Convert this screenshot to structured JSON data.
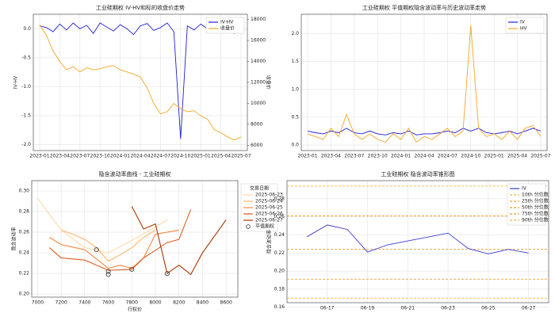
{
  "chart_data": [
    {
      "type": "line",
      "title": "工业硅期权 IV-HV和标的收盘价走势",
      "ylabel": "IV-HV",
      "y2label": "收盘价",
      "x": [
        "2023-01",
        "2023-02",
        "2023-03",
        "2023-04",
        "2023-05",
        "2023-06",
        "2023-07",
        "2023-08",
        "2023-09",
        "2023-10",
        "2023-11",
        "2023-12",
        "2024-01",
        "2024-02",
        "2024-03",
        "2024-04",
        "2024-05",
        "2024-06",
        "2024-07",
        "2024-08",
        "2024-09",
        "2024-10",
        "2024-11",
        "2024-12",
        "2025-01",
        "2025-02",
        "2025-03",
        "2025-04",
        "2025-05",
        "2025-06",
        "2025-07"
      ],
      "xticks": [
        "2023-01",
        "2023-04",
        "2023-07",
        "2023-10",
        "2024-01",
        "2024-04",
        "2024-07",
        "2024-10",
        "2025-01",
        "2025-04",
        "2025-07"
      ],
      "ylim": [
        -2.1,
        0.25
      ],
      "yticks": [
        {
          "value": 0,
          "label": "0.0"
        },
        -0.5,
        {
          "value": -1,
          "label": "-1.0"
        },
        -1.5,
        {
          "value": -2,
          "label": "-2.0"
        }
      ],
      "y2lim": [
        5500,
        18500
      ],
      "y2ticks": [
        6000,
        8000,
        10000,
        12000,
        14000,
        16000,
        18000
      ],
      "grid": true,
      "legend": "upper right",
      "series": [
        {
          "name": "IV-HV",
          "color": "#1f1fd6",
          "values": [
            0.05,
            0.02,
            -0.05,
            0.08,
            -0.02,
            0.1,
            0.0,
            0.06,
            -0.08,
            0.1,
            0.03,
            -0.04,
            0.07,
            0.0,
            -0.1,
            0.05,
            0.09,
            -0.03,
            0.02,
            0.1,
            -0.05,
            -1.9,
            0.05,
            -0.02,
            0.08,
            0.0,
            -0.06,
            0.04,
            0.02,
            -0.08,
            0.05
          ]
        },
        {
          "name": "收盘价",
          "color": "#f5a623",
          "axis": "y2",
          "values": [
            17500,
            16500,
            15000,
            14000,
            13200,
            13500,
            13000,
            13400,
            13200,
            13300,
            13500,
            13600,
            13200,
            13000,
            12800,
            12500,
            11500,
            10000,
            9000,
            9200,
            10000,
            9500,
            9200,
            9300,
            8800,
            8500,
            7500,
            7200,
            6800,
            6500,
            6800
          ]
        }
      ]
    },
    {
      "type": "line",
      "title": "工业硅期权 平值期权隐含波动率与历史波动率走势",
      "x": [
        "2023-01",
        "2023-02",
        "2023-03",
        "2023-04",
        "2023-05",
        "2023-06",
        "2023-07",
        "2023-08",
        "2023-09",
        "2023-10",
        "2023-11",
        "2023-12",
        "2024-01",
        "2024-02",
        "2024-03",
        "2024-04",
        "2024-05",
        "2024-06",
        "2024-07",
        "2024-08",
        "2024-09",
        "2024-10",
        "2024-11",
        "2024-12",
        "2025-01",
        "2025-02",
        "2025-03",
        "2025-04",
        "2025-05",
        "2025-06",
        "2025-07"
      ],
      "xticks": [
        "2023-01",
        "2023-04",
        "2023-07",
        "2023-10",
        "2024-01",
        "2024-04",
        "2024-07",
        "2024-10",
        "2025-01",
        "2025-04",
        "2025-07"
      ],
      "ylim": [
        -0.1,
        2.35
      ],
      "yticks": [
        {
          "value": 0,
          "label": "0.0"
        },
        0.5,
        {
          "value": 1,
          "label": "1.0"
        },
        1.5,
        {
          "value": 2,
          "label": "2.0"
        }
      ],
      "grid": true,
      "legend": "upper right",
      "series": [
        {
          "name": "IV",
          "color": "#1f1fd6",
          "values": [
            0.25,
            0.22,
            0.2,
            0.25,
            0.22,
            0.3,
            0.22,
            0.2,
            0.25,
            0.2,
            0.18,
            0.22,
            0.2,
            0.25,
            0.18,
            0.2,
            0.2,
            0.22,
            0.25,
            0.22,
            0.3,
            0.25,
            0.3,
            0.22,
            0.2,
            0.22,
            0.25,
            0.2,
            0.25,
            0.3,
            0.25
          ]
        },
        {
          "name": "HV",
          "color": "#f5a623",
          "values": [
            0.2,
            0.15,
            0.1,
            0.3,
            0.15,
            0.55,
            0.2,
            0.1,
            0.2,
            0.1,
            0.05,
            0.2,
            0.1,
            0.3,
            0.05,
            0.15,
            0.1,
            0.2,
            0.3,
            0.15,
            0.25,
            2.15,
            0.3,
            0.15,
            0.2,
            0.1,
            0.25,
            0.1,
            0.3,
            0.35,
            0.15
          ]
        }
      ]
    },
    {
      "type": "line",
      "title": "隐含波动率曲线 - 工业硅期权",
      "xlabel": "行权价",
      "ylabel": "隐含波动率",
      "xlim": [
        6950,
        8700
      ],
      "xticks": [
        7000,
        7200,
        7400,
        7600,
        7800,
        8000,
        8200,
        8400,
        8600
      ],
      "ylim": [
        0.197,
        0.31
      ],
      "yticks": [
        {
          "value": 0.2,
          "label": "0.20"
        },
        0.22,
        0.24,
        0.26,
        0.28,
        {
          "value": 0.3,
          "label": "0.30"
        }
      ],
      "grid": true,
      "legend": "outside right",
      "legend_title": "交易日期",
      "series": [
        {
          "name": "2025-06-23",
          "color": "#fdd9a8",
          "x": [
            7000,
            7200,
            7400,
            7600,
            7800,
            8000,
            8100
          ],
          "values": [
            0.293,
            0.262,
            0.245,
            0.24,
            0.252,
            0.265,
            0.272
          ]
        },
        {
          "name": "2025-06-24",
          "color": "#fdb56b",
          "x": [
            7200,
            7300,
            7400,
            7500,
            7600,
            7700,
            7800,
            7900,
            8000
          ],
          "values": [
            0.262,
            0.258,
            0.253,
            0.245,
            0.232,
            0.238,
            0.245,
            0.255,
            0.262
          ]
        },
        {
          "name": "2025-06-25",
          "color": "#f5883a",
          "x": [
            7100,
            7200,
            7400,
            7600,
            7700,
            7800,
            7900,
            8000,
            8200
          ],
          "values": [
            0.255,
            0.248,
            0.243,
            0.225,
            0.228,
            0.225,
            0.235,
            0.258,
            0.262
          ]
        },
        {
          "name": "2025-06-26",
          "color": "#dc5e1e",
          "x": [
            7100,
            7200,
            7400,
            7600,
            7800,
            7900,
            8100,
            8200,
            8300
          ],
          "values": [
            0.245,
            0.235,
            0.233,
            0.223,
            0.224,
            0.235,
            0.25,
            0.253,
            0.282
          ]
        },
        {
          "name": "2025-06-27",
          "color": "#a63603",
          "x": [
            7800,
            7900,
            8000,
            8100,
            8200,
            8300,
            8400,
            8600
          ],
          "values": [
            0.285,
            0.263,
            0.268,
            0.22,
            0.228,
            0.219,
            0.24,
            0.272
          ]
        }
      ],
      "markers": {
        "name": "平值期权",
        "color": "#333333",
        "x": [
          7500,
          7600,
          7600,
          7800,
          8100
        ],
        "values": [
          0.243,
          0.222,
          0.219,
          0.224,
          0.22
        ]
      }
    },
    {
      "type": "line",
      "title": "工业硅期权 隐含波动率锥形图",
      "ylabel": "隐含波动率",
      "xlim": [
        "06-15",
        "06-28"
      ],
      "xticks": [
        "06-17",
        "06-19",
        "06-21",
        "06-23",
        "06-25",
        "06-27"
      ],
      "ylim": [
        0.165,
        0.3
      ],
      "yticks": [
        0.16,
        0.18,
        {
          "value": 0.2,
          "label": "0.20"
        },
        0.22,
        0.24,
        0.26,
        0.28
      ],
      "grid": true,
      "legend": "upper right",
      "series": [
        {
          "name": "IV",
          "color": "#3a3ad0",
          "x": [
            "06-16",
            "06-17",
            "06-18",
            "06-19",
            "06-20",
            "06-23",
            "06-24",
            "06-25",
            "06-26",
            "06-27"
          ],
          "values": [
            0.238,
            0.251,
            0.246,
            0.221,
            0.229,
            0.242,
            0.225,
            0.219,
            0.224,
            0.22
          ]
        }
      ],
      "quantiles": [
        {
          "name": "10th 分位数",
          "color": "#f5b342",
          "value": 0.17
        },
        {
          "name": "25th 分位数",
          "color": "#f0a030",
          "value": 0.191
        },
        {
          "name": "50th 分位数",
          "color": "#e89a20",
          "value": 0.224
        },
        {
          "name": "75th 分位数",
          "color": "#f0a030",
          "value": 0.261
        },
        {
          "name": "90th 分位数",
          "color": "#f5b342",
          "value": 0.294
        }
      ]
    }
  ]
}
